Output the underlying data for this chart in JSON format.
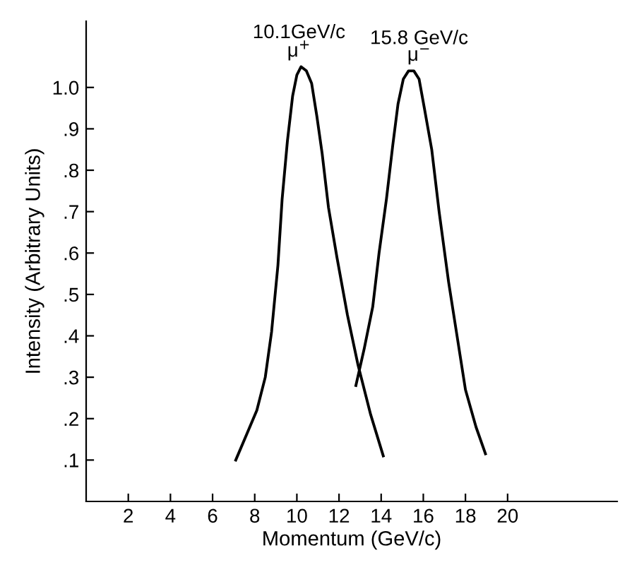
{
  "chart_data": {
    "type": "line",
    "xlabel": "Momentum (GeV/c)",
    "ylabel": "Intensity (Arbitrary Units)",
    "xlim": [
      0,
      25.2
    ],
    "ylim": [
      0,
      1.16
    ],
    "xticks": [
      2,
      4,
      6,
      8,
      10,
      12,
      14,
      16,
      18,
      20
    ],
    "yticks": [
      {
        "value": 0.1,
        "label": ".1"
      },
      {
        "value": 0.2,
        "label": ".2"
      },
      {
        "value": 0.3,
        "label": ".3"
      },
      {
        "value": 0.4,
        "label": ".4"
      },
      {
        "value": 0.5,
        "label": ".5"
      },
      {
        "value": 0.6,
        "label": ".6"
      },
      {
        "value": 0.7,
        "label": ".7"
      },
      {
        "value": 0.8,
        "label": ".8"
      },
      {
        "value": 0.9,
        "label": ".9"
      },
      {
        "value": 1.0,
        "label": "1.0"
      }
    ],
    "grid": false,
    "legend": false,
    "marker": "none",
    "line_style": "solid",
    "series": [
      {
        "color": "#000000",
        "x": [
          7.1,
          7.6,
          8.1,
          8.5,
          8.8,
          9.1,
          9.3,
          9.55,
          9.8,
          10.0,
          10.2,
          10.45,
          10.7,
          10.95,
          11.2,
          11.5,
          11.9,
          12.4,
          12.9,
          13.5,
          14.1
        ],
        "values": [
          0.1,
          0.16,
          0.22,
          0.3,
          0.41,
          0.57,
          0.73,
          0.87,
          0.98,
          1.03,
          1.05,
          1.04,
          1.01,
          0.93,
          0.84,
          0.71,
          0.59,
          0.45,
          0.33,
          0.21,
          0.11
        ]
      },
      {
        "color": "#000000",
        "x": [
          12.8,
          13.2,
          13.6,
          13.9,
          14.25,
          14.55,
          14.8,
          15.05,
          15.3,
          15.55,
          15.8,
          16.05,
          16.4,
          16.75,
          17.2,
          17.6,
          18.0,
          18.5,
          18.95
        ],
        "values": [
          0.28,
          0.37,
          0.47,
          0.6,
          0.73,
          0.86,
          0.96,
          1.02,
          1.04,
          1.04,
          1.02,
          0.95,
          0.85,
          0.7,
          0.53,
          0.4,
          0.27,
          0.18,
          0.115
        ]
      }
    ],
    "annotations": [
      {
        "text": "10.1GeV/c\nμ$^{+}$",
        "x": 10.1,
        "y": 1.05
      },
      {
        "text": "15.8 GeV/c\nμ$^{−}$",
        "x": 15.8,
        "y": 1.04
      }
    ]
  }
}
